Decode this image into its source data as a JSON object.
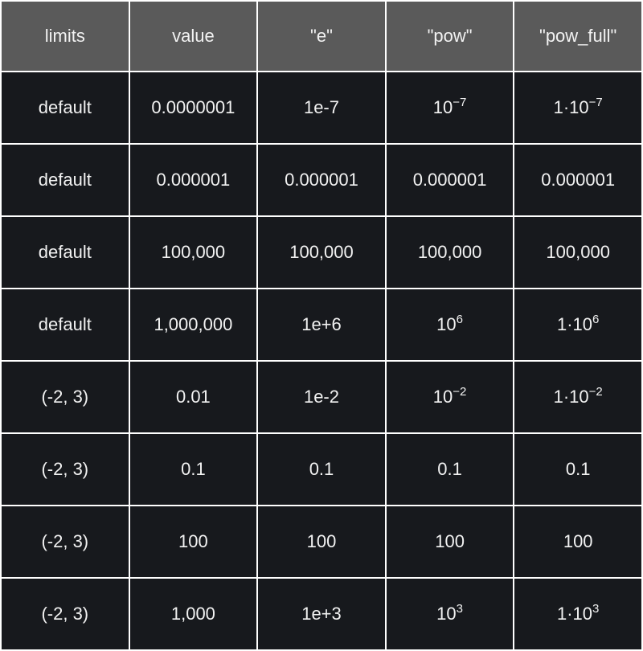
{
  "table": {
    "headers": [
      "limits",
      "value",
      "\"e\"",
      "\"pow\"",
      "\"pow_full\""
    ],
    "rows": [
      {
        "limits": "default",
        "value": "0.0000001",
        "e": "1e-7",
        "pow": {
          "base": "10",
          "exp": "−7"
        },
        "pow_full": {
          "base": "1·10",
          "exp": "−7"
        }
      },
      {
        "limits": "default",
        "value": "0.000001",
        "e": "0.000001",
        "pow": {
          "base": "0.000001",
          "exp": ""
        },
        "pow_full": {
          "base": "0.000001",
          "exp": ""
        }
      },
      {
        "limits": "default",
        "value": "100,000",
        "e": "100,000",
        "pow": {
          "base": "100,000",
          "exp": ""
        },
        "pow_full": {
          "base": "100,000",
          "exp": ""
        }
      },
      {
        "limits": "default",
        "value": "1,000,000",
        "e": "1e+6",
        "pow": {
          "base": "10",
          "exp": "6"
        },
        "pow_full": {
          "base": "1·10",
          "exp": "6"
        }
      },
      {
        "limits": "(-2, 3)",
        "value": "0.01",
        "e": "1e-2",
        "pow": {
          "base": "10",
          "exp": "−2"
        },
        "pow_full": {
          "base": "1·10",
          "exp": "−2"
        }
      },
      {
        "limits": "(-2, 3)",
        "value": "0.1",
        "e": "0.1",
        "pow": {
          "base": "0.1",
          "exp": ""
        },
        "pow_full": {
          "base": "0.1",
          "exp": ""
        }
      },
      {
        "limits": "(-2, 3)",
        "value": "100",
        "e": "100",
        "pow": {
          "base": "100",
          "exp": ""
        },
        "pow_full": {
          "base": "100",
          "exp": ""
        }
      },
      {
        "limits": "(-2, 3)",
        "value": "1,000",
        "e": "1e+3",
        "pow": {
          "base": "10",
          "exp": "3"
        },
        "pow_full": {
          "base": "1·10",
          "exp": "3"
        }
      }
    ]
  },
  "colors": {
    "header_bg": "#5a5a5a",
    "cell_bg": "#17191d",
    "text": "#f2f2f2",
    "border": "#ffffff"
  }
}
